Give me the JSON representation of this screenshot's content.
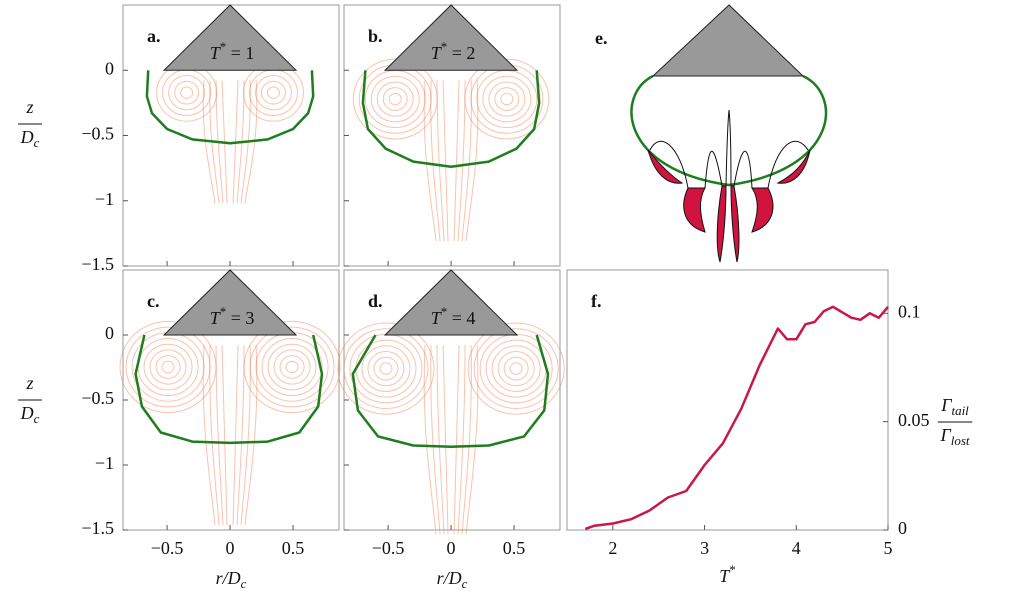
{
  "chart_data": [
    {
      "type": "line",
      "label": "a.",
      "annotation": {
        "base": "T",
        "sup": "*",
        "rest": " = 1"
      },
      "xlim": [
        -0.85,
        0.865
      ],
      "ylim": [
        -1.5,
        0.5
      ],
      "xticks": [
        -0.5,
        0,
        0.5
      ],
      "yticks": [
        {
          "value": 0,
          "label": "0"
        },
        {
          "value": -0.5,
          "label": "−0.5"
        },
        {
          "value": -1,
          "label": "−1"
        },
        {
          "value": -1.5,
          "label": "−1.5"
        }
      ],
      "ylabel": {
        "numerator": "z",
        "denominator": {
          "base": "D",
          "sub": "c"
        }
      },
      "series": [
        {
          "color": "#1e7d1e",
          "x": [
            -0.65,
            -0.66,
            -0.62,
            -0.5,
            -0.3,
            0,
            0.3,
            0.5,
            0.62,
            0.66,
            0.65
          ],
          "values": [
            0,
            -0.2,
            -0.33,
            -0.45,
            -0.53,
            -0.56,
            -0.53,
            -0.45,
            -0.33,
            -0.2,
            0
          ]
        }
      ]
    },
    {
      "type": "line",
      "label": "b.",
      "annotation": {
        "base": "T",
        "sup": "*",
        "rest": " = 2"
      },
      "xlim": [
        -0.85,
        0.865
      ],
      "ylim": [
        -1.5,
        0.5
      ],
      "xticks": [
        -0.5,
        0,
        0.5
      ],
      "yticks": [
        0,
        -0.5,
        -1,
        -1.5
      ],
      "series": [
        {
          "color": "#1e7d1e",
          "x": [
            -0.68,
            -0.7,
            -0.66,
            -0.52,
            -0.3,
            0,
            0.3,
            0.52,
            0.66,
            0.7,
            0.68
          ],
          "values": [
            0,
            -0.25,
            -0.45,
            -0.6,
            -0.7,
            -0.74,
            -0.7,
            -0.6,
            -0.45,
            -0.25,
            0
          ]
        }
      ]
    },
    {
      "type": "line",
      "label": "c.",
      "annotation": {
        "base": "T",
        "sup": "*",
        "rest": " = 3"
      },
      "xlim": [
        -0.85,
        0.865
      ],
      "ylim": [
        -1.5,
        0.5
      ],
      "xticks": [
        {
          "value": -0.5,
          "label": "−0.5"
        },
        {
          "value": 0,
          "label": "0"
        },
        {
          "value": 0.5,
          "label": "0.5"
        }
      ],
      "yticks": [
        {
          "value": 0,
          "label": "0"
        },
        {
          "value": -0.5,
          "label": "−0.5"
        },
        {
          "value": -1,
          "label": "−1"
        },
        {
          "value": -1.5,
          "label": "−1.5"
        }
      ],
      "xlabel": {
        "base": "r/D",
        "sub": "c"
      },
      "ylabel": {
        "numerator": "z",
        "denominator": {
          "base": "D",
          "sub": "c"
        }
      },
      "series": [
        {
          "color": "#1e7d1e",
          "x": [
            -0.68,
            -0.75,
            -0.7,
            -0.55,
            -0.3,
            0,
            0.3,
            0.55,
            0.7,
            0.73,
            0.66
          ],
          "values": [
            0,
            -0.3,
            -0.55,
            -0.75,
            -0.82,
            -0.83,
            -0.82,
            -0.75,
            -0.55,
            -0.3,
            0
          ]
        }
      ]
    },
    {
      "type": "line",
      "label": "d.",
      "annotation": {
        "base": "T",
        "sup": "*",
        "rest": " = 4"
      },
      "xlim": [
        -0.85,
        0.865
      ],
      "ylim": [
        -1.5,
        0.5
      ],
      "xticks": [
        {
          "value": -0.5,
          "label": "−0.5"
        },
        {
          "value": 0,
          "label": "0"
        },
        {
          "value": 0.5,
          "label": "0.5"
        }
      ],
      "yticks": [
        0,
        -0.5,
        -1,
        -1.5
      ],
      "xlabel": {
        "base": "r/D",
        "sub": "c"
      },
      "series": [
        {
          "color": "#1e7d1e",
          "x": [
            -0.6,
            -0.78,
            -0.74,
            -0.58,
            -0.3,
            0,
            0.3,
            0.58,
            0.74,
            0.77,
            0.68
          ],
          "values": [
            0,
            -0.3,
            -0.58,
            -0.78,
            -0.85,
            -0.86,
            -0.85,
            -0.78,
            -0.58,
            -0.3,
            0
          ]
        }
      ]
    },
    {
      "type": "diagram",
      "label": "e."
    },
    {
      "type": "line",
      "label": "f.",
      "xlim": [
        1.5,
        5
      ],
      "ylim": [
        0,
        0.12
      ],
      "xticks": [
        2,
        3,
        4,
        5
      ],
      "yticks": [
        0,
        0.05,
        0.1
      ],
      "xlabel": {
        "base": "T",
        "sup": "*"
      },
      "ylabel": {
        "numerator": {
          "base": "Γ",
          "sub": "tail"
        },
        "denominator": {
          "base": "Γ",
          "sub": "lost"
        }
      },
      "series": [
        {
          "color": "#c8174a",
          "x": [
            1.7,
            1.8,
            2,
            2.2,
            2.4,
            2.6,
            2.8,
            3,
            3.2,
            3.4,
            3.6,
            3.8,
            3.9,
            4,
            4.1,
            4.2,
            4.3,
            4.4,
            4.6,
            4.7,
            4.8,
            4.9,
            5
          ],
          "values": [
            0.0005,
            0.002,
            0.003,
            0.005,
            0.009,
            0.015,
            0.018,
            0.03,
            0.04,
            0.056,
            0.076,
            0.093,
            0.088,
            0.088,
            0.095,
            0.096,
            0.101,
            0.103,
            0.098,
            0.097,
            0.1,
            0.098,
            0.103
          ]
        }
      ]
    }
  ]
}
